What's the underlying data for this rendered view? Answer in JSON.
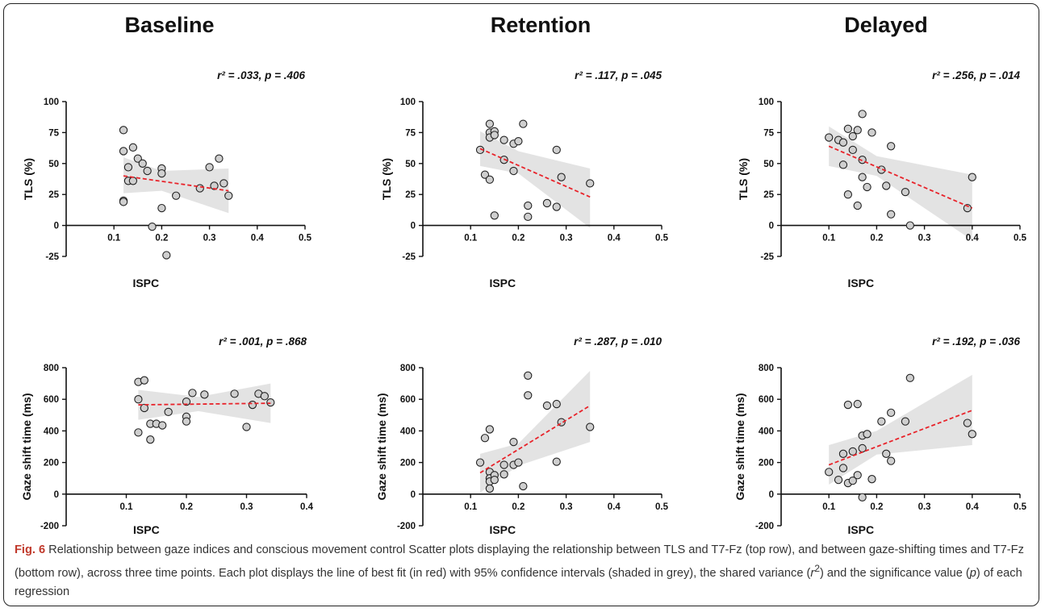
{
  "column_titles": [
    "Baseline",
    "Retention",
    "Delayed"
  ],
  "caption": {
    "figure_label": "Fig. 6",
    "text_1": " Relationship between gaze indices and conscious movement control Scatter plots displaying the relationship between TLS and T7-Fz (top row), and between gaze-shifting times and T7-Fz (bottom row), across three time points. Each plot displays the line of best fit (in red) with 95% confidence intervals (shaded in grey), the shared variance (",
    "r_symbol": "r",
    "sup": "2",
    "text_2": ") and the significance value (",
    "p_symbol": "p",
    "text_3": ") of each regression"
  },
  "colors": {
    "point_fill": "#cfcfcf",
    "point_stroke": "#222222",
    "fit_line": "#e8232a",
    "ci_band": "#d9d9d9",
    "axis": "#111111"
  },
  "chart_data": [
    {
      "type": "scatter",
      "panel": "Baseline",
      "stat": "r² = .033, p = .406",
      "xlabel": "ISPC",
      "ylabel": "TLS (%)",
      "xlim": [
        0,
        0.5
      ],
      "ylim": [
        -25,
        100
      ],
      "xticks": [
        "0.1",
        "0.2",
        "0.3",
        "0.4",
        "0.5"
      ],
      "yticks": [
        "-25",
        "0",
        "25",
        "50",
        "75",
        "100"
      ],
      "points": [
        [
          0.12,
          77
        ],
        [
          0.12,
          60
        ],
        [
          0.12,
          20
        ],
        [
          0.12,
          19
        ],
        [
          0.13,
          47
        ],
        [
          0.13,
          36
        ],
        [
          0.14,
          63
        ],
        [
          0.14,
          36
        ],
        [
          0.15,
          54
        ],
        [
          0.16,
          50
        ],
        [
          0.17,
          44
        ],
        [
          0.18,
          -1
        ],
        [
          0.2,
          46
        ],
        [
          0.2,
          42
        ],
        [
          0.2,
          14
        ],
        [
          0.21,
          -24
        ],
        [
          0.23,
          24
        ],
        [
          0.28,
          30
        ],
        [
          0.3,
          47
        ],
        [
          0.31,
          32
        ],
        [
          0.32,
          54
        ],
        [
          0.33,
          34
        ],
        [
          0.34,
          24
        ]
      ],
      "fit": {
        "x": [
          0.12,
          0.34
        ],
        "y": [
          40,
          28
        ]
      },
      "ci": {
        "x": [
          0.12,
          0.2,
          0.34
        ],
        "upper": [
          55,
          44,
          46
        ],
        "lower": [
          26,
          28,
          10
        ]
      }
    },
    {
      "type": "scatter",
      "panel": "Retention",
      "stat": "r² = .117, p = .045",
      "xlabel": "ISPC",
      "ylabel": "TLS (%)",
      "xlim": [
        0,
        0.5
      ],
      "ylim": [
        -25,
        100
      ],
      "xticks": [
        "0.1",
        "0.2",
        "0.3",
        "0.4",
        "0.5"
      ],
      "yticks": [
        "-25",
        "0",
        "25",
        "50",
        "75",
        "100"
      ],
      "points": [
        [
          0.12,
          61
        ],
        [
          0.13,
          41
        ],
        [
          0.14,
          37
        ],
        [
          0.14,
          82
        ],
        [
          0.14,
          75
        ],
        [
          0.14,
          71
        ],
        [
          0.15,
          76
        ],
        [
          0.15,
          73
        ],
        [
          0.15,
          8
        ],
        [
          0.17,
          69
        ],
        [
          0.17,
          53
        ],
        [
          0.19,
          66
        ],
        [
          0.19,
          44
        ],
        [
          0.2,
          68
        ],
        [
          0.21,
          82
        ],
        [
          0.22,
          16
        ],
        [
          0.22,
          7
        ],
        [
          0.26,
          18
        ],
        [
          0.28,
          61
        ],
        [
          0.28,
          15
        ],
        [
          0.29,
          39
        ],
        [
          0.35,
          34
        ]
      ],
      "fit": {
        "x": [
          0.12,
          0.35
        ],
        "y": [
          62,
          23
        ]
      },
      "ci": {
        "x": [
          0.12,
          0.2,
          0.35
        ],
        "upper": [
          76,
          60,
          46
        ],
        "lower": [
          48,
          42,
          -2
        ]
      }
    },
    {
      "type": "scatter",
      "panel": "Delayed",
      "stat": "r² = .256, p = .014",
      "xlabel": "ISPC",
      "ylabel": "TLS (%)",
      "xlim": [
        0,
        0.5
      ],
      "ylim": [
        -25,
        100
      ],
      "xticks": [
        "0.1",
        "0.2",
        "0.3",
        "0.4",
        "0.5"
      ],
      "yticks": [
        "-25",
        "0",
        "25",
        "50",
        "75",
        "100"
      ],
      "points": [
        [
          0.1,
          71
        ],
        [
          0.12,
          69
        ],
        [
          0.13,
          67
        ],
        [
          0.13,
          49
        ],
        [
          0.14,
          78
        ],
        [
          0.14,
          25
        ],
        [
          0.15,
          72
        ],
        [
          0.15,
          61
        ],
        [
          0.16,
          77
        ],
        [
          0.16,
          16
        ],
        [
          0.17,
          90
        ],
        [
          0.17,
          53
        ],
        [
          0.17,
          39
        ],
        [
          0.18,
          31
        ],
        [
          0.19,
          75
        ],
        [
          0.21,
          45
        ],
        [
          0.22,
          32
        ],
        [
          0.23,
          64
        ],
        [
          0.23,
          9
        ],
        [
          0.26,
          27
        ],
        [
          0.27,
          0
        ],
        [
          0.39,
          14
        ],
        [
          0.4,
          39
        ]
      ],
      "fit": {
        "x": [
          0.1,
          0.4
        ],
        "y": [
          64,
          14
        ]
      },
      "ci": {
        "x": [
          0.1,
          0.2,
          0.4
        ],
        "upper": [
          80,
          56,
          41
        ],
        "lower": [
          48,
          40,
          -12
        ]
      }
    },
    {
      "type": "scatter",
      "panel": "Baseline",
      "stat": "r² = .001, p = .868",
      "xlabel": "ISPC",
      "ylabel": "Gaze shift time (ms)",
      "xlim": [
        0,
        0.4
      ],
      "ylim": [
        -200,
        800
      ],
      "xticks": [
        "0.1",
        "0.2",
        "0.3",
        "0.4"
      ],
      "yticks": [
        "-200",
        "0",
        "200",
        "400",
        "600",
        "800"
      ],
      "points": [
        [
          0.12,
          710
        ],
        [
          0.12,
          600
        ],
        [
          0.12,
          390
        ],
        [
          0.13,
          720
        ],
        [
          0.13,
          545
        ],
        [
          0.14,
          445
        ],
        [
          0.14,
          345
        ],
        [
          0.15,
          445
        ],
        [
          0.16,
          435
        ],
        [
          0.17,
          520
        ],
        [
          0.2,
          585
        ],
        [
          0.2,
          490
        ],
        [
          0.2,
          460
        ],
        [
          0.21,
          640
        ],
        [
          0.23,
          630
        ],
        [
          0.28,
          635
        ],
        [
          0.3,
          425
        ],
        [
          0.31,
          565
        ],
        [
          0.32,
          635
        ],
        [
          0.33,
          620
        ],
        [
          0.34,
          580
        ]
      ],
      "fit": {
        "x": [
          0.12,
          0.34
        ],
        "y": [
          565,
          575
        ]
      },
      "ci": {
        "x": [
          0.12,
          0.22,
          0.34
        ],
        "upper": [
          660,
          615,
          700
        ],
        "lower": [
          470,
          525,
          450
        ]
      }
    },
    {
      "type": "scatter",
      "panel": "Retention",
      "stat": "r² = .287, p = .010",
      "xlabel": "ISPC",
      "ylabel": "Gaze shift time (ms)",
      "xlim": [
        0,
        0.5
      ],
      "ylim": [
        -200,
        800
      ],
      "xticks": [
        "0.1",
        "0.2",
        "0.3",
        "0.4",
        "0.5"
      ],
      "yticks": [
        "-200",
        "0",
        "200",
        "400",
        "600",
        "800"
      ],
      "points": [
        [
          0.12,
          200
        ],
        [
          0.13,
          355
        ],
        [
          0.14,
          410
        ],
        [
          0.14,
          140
        ],
        [
          0.14,
          100
        ],
        [
          0.14,
          80
        ],
        [
          0.14,
          35
        ],
        [
          0.15,
          120
        ],
        [
          0.15,
          90
        ],
        [
          0.17,
          185
        ],
        [
          0.17,
          125
        ],
        [
          0.19,
          330
        ],
        [
          0.19,
          185
        ],
        [
          0.2,
          200
        ],
        [
          0.21,
          50
        ],
        [
          0.22,
          750
        ],
        [
          0.22,
          625
        ],
        [
          0.26,
          560
        ],
        [
          0.28,
          570
        ],
        [
          0.28,
          205
        ],
        [
          0.29,
          455
        ],
        [
          0.35,
          425
        ]
      ],
      "fit": {
        "x": [
          0.12,
          0.35
        ],
        "y": [
          135,
          560
        ]
      },
      "ci": {
        "x": [
          0.12,
          0.2,
          0.35
        ],
        "upper": [
          255,
          320,
          780
        ],
        "lower": [
          10,
          180,
          330
        ]
      }
    },
    {
      "type": "scatter",
      "panel": "Delayed",
      "stat": "r² = .192, p = .036",
      "xlabel": "ISPC",
      "ylabel": "Gaze shift time (ms)",
      "xlim": [
        0,
        0.5
      ],
      "ylim": [
        -200,
        800
      ],
      "xticks": [
        "0.1",
        "0.2",
        "0.3",
        "0.4",
        "0.5"
      ],
      "yticks": [
        "-200",
        "0",
        "200",
        "400",
        "600",
        "800"
      ],
      "points": [
        [
          0.1,
          140
        ],
        [
          0.12,
          90
        ],
        [
          0.13,
          255
        ],
        [
          0.13,
          165
        ],
        [
          0.14,
          565
        ],
        [
          0.14,
          70
        ],
        [
          0.15,
          270
        ],
        [
          0.15,
          85
        ],
        [
          0.16,
          570
        ],
        [
          0.16,
          120
        ],
        [
          0.17,
          370
        ],
        [
          0.17,
          290
        ],
        [
          0.17,
          -20
        ],
        [
          0.18,
          380
        ],
        [
          0.19,
          95
        ],
        [
          0.21,
          460
        ],
        [
          0.22,
          255
        ],
        [
          0.23,
          515
        ],
        [
          0.23,
          210
        ],
        [
          0.26,
          460
        ],
        [
          0.27,
          735
        ],
        [
          0.39,
          450
        ],
        [
          0.4,
          380
        ]
      ],
      "fit": {
        "x": [
          0.1,
          0.4
        ],
        "y": [
          185,
          530
        ]
      },
      "ci": {
        "x": [
          0.1,
          0.2,
          0.4
        ],
        "upper": [
          310,
          400,
          755
        ],
        "lower": [
          60,
          250,
          310
        ]
      }
    }
  ]
}
